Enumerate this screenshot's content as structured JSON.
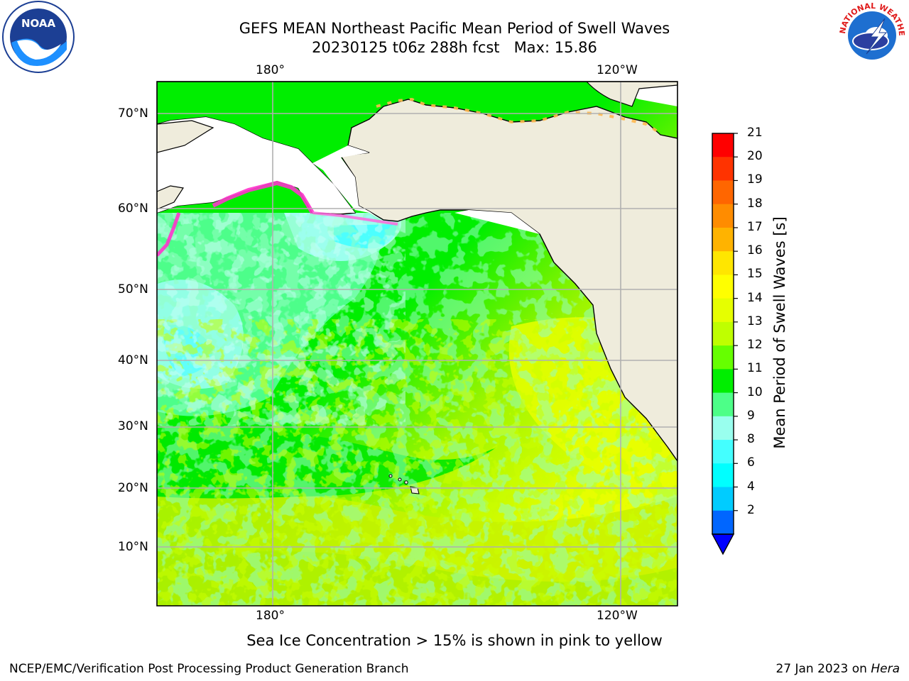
{
  "header": {
    "title_line1": "GEFS MEAN Northeast Pacific Mean Period of Swell Waves",
    "title_line2": "20230125 t06z 288h fcst   Max: 15.86"
  },
  "logos": {
    "left": "noaa-logo",
    "left_text": "NOAA",
    "right": "nws-logo",
    "right_text": "NATIONAL WEATHER SERVICE"
  },
  "map": {
    "top_lon_labels": [
      "180°",
      "120°W"
    ],
    "bottom_lon_labels": [
      "180°",
      "120°W"
    ],
    "lat_labels": [
      "70°N",
      "60°N",
      "50°N",
      "40°N",
      "30°N",
      "20°N",
      "10°N"
    ],
    "colors": {
      "land": "#efecdc",
      "grid": "#b0b0b0",
      "ice_pink": "#ff33cc",
      "ice_orange": "#ffb84d"
    }
  },
  "colorbar": {
    "label": "Mean Period of Swell Waves [s]",
    "ticks": [
      "21",
      "20",
      "19",
      "18",
      "17",
      "16",
      "15",
      "14",
      "13",
      "12",
      "11",
      "10",
      "9",
      "8",
      "6",
      "4",
      "2"
    ],
    "colors": [
      "#ff0000",
      "#ff3300",
      "#ff6600",
      "#ff8c00",
      "#ffb300",
      "#ffe600",
      "#ffff00",
      "#e6ff00",
      "#bfff00",
      "#66ff00",
      "#00ee00",
      "#4dff88",
      "#99ffee",
      "#44ffff",
      "#00ffff",
      "#00ccff",
      "#0066ff"
    ],
    "under_color": "#0000ff"
  },
  "caption": "Sea Ice Concentration > 15% is shown in pink to yellow",
  "footer": {
    "left": "NCEP/EMC/Verification Post Processing Product Generation Branch",
    "right_prefix": "27 Jan 2023 on ",
    "right_host": "Hera"
  }
}
